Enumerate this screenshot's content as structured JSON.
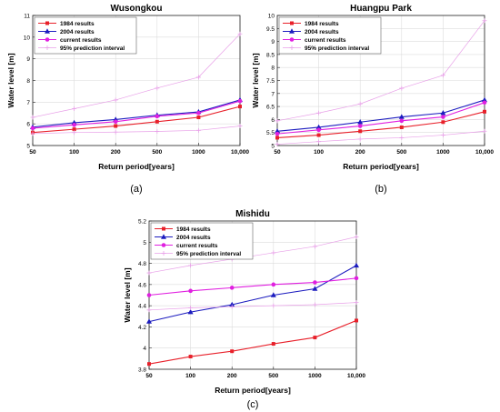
{
  "chart_data": [
    {
      "panel": "(a)",
      "type": "line",
      "title": "Wusongkou",
      "xlabel": "Return period[years]",
      "ylabel": "Water level [m]",
      "categories": [
        "50",
        "100",
        "200",
        "500",
        "1000",
        "10,000"
      ],
      "ylim": [
        5,
        11
      ],
      "yticks": [
        5,
        6,
        7,
        8,
        9,
        10,
        11
      ],
      "legend_position": "top-left",
      "grid": true,
      "series": [
        {
          "name": "1984 results",
          "values": [
            5.6,
            5.75,
            5.9,
            6.1,
            6.3,
            6.8
          ],
          "color": "#e8202a",
          "marker": "square"
        },
        {
          "name": "2004 results",
          "values": [
            5.85,
            6.05,
            6.2,
            6.4,
            6.55,
            7.1
          ],
          "color": "#1c1cbf",
          "marker": "triangle"
        },
        {
          "name": "current results",
          "values": [
            5.8,
            5.95,
            6.1,
            6.35,
            6.5,
            7.05
          ],
          "color": "#e020e0",
          "marker": "circle"
        },
        {
          "name": "95% prediction interval",
          "values": [
            6.3,
            6.7,
            7.1,
            7.65,
            8.15,
            10.15
          ],
          "color": "#e8a0e8",
          "marker": "plus",
          "style": "interval"
        },
        {
          "name": "",
          "values": [
            5.55,
            5.6,
            5.62,
            5.65,
            5.7,
            5.9
          ],
          "color": "#e8a0e8",
          "marker": "plus",
          "style": "interval"
        }
      ]
    },
    {
      "panel": "(b)",
      "type": "line",
      "title": "Huangpu Park",
      "xlabel": "Return period[years]",
      "ylabel": "Water level [m]",
      "categories": [
        "50",
        "100",
        "200",
        "500",
        "1000",
        "10,000"
      ],
      "ylim": [
        5,
        10
      ],
      "yticks": [
        5,
        5.5,
        6,
        6.5,
        7,
        7.5,
        8,
        8.5,
        9,
        9.5,
        10
      ],
      "legend_position": "top-left",
      "grid": true,
      "series": [
        {
          "name": "1984 results",
          "values": [
            5.3,
            5.4,
            5.55,
            5.7,
            5.9,
            6.3
          ],
          "color": "#e8202a",
          "marker": "square"
        },
        {
          "name": "2004 results",
          "values": [
            5.55,
            5.7,
            5.9,
            6.1,
            6.25,
            6.75
          ],
          "color": "#1c1cbf",
          "marker": "triangle"
        },
        {
          "name": "current results",
          "values": [
            5.45,
            5.6,
            5.75,
            5.95,
            6.1,
            6.65
          ],
          "color": "#e020e0",
          "marker": "circle"
        },
        {
          "name": "95% prediction interval",
          "values": [
            5.95,
            6.25,
            6.6,
            7.2,
            7.7,
            9.8
          ],
          "color": "#e8a0e8",
          "marker": "plus",
          "style": "interval"
        },
        {
          "name": "",
          "values": [
            5.05,
            5.15,
            5.25,
            5.3,
            5.4,
            5.55
          ],
          "color": "#e8a0e8",
          "marker": "plus",
          "style": "interval"
        }
      ]
    },
    {
      "panel": "(c)",
      "type": "line",
      "title": "Mishidu",
      "xlabel": "Return period[years]",
      "ylabel": "Water level [m]",
      "categories": [
        "50",
        "100",
        "200",
        "500",
        "1000",
        "10,000"
      ],
      "ylim": [
        3.8,
        5.2
      ],
      "yticks": [
        3.8,
        4,
        4.2,
        4.4,
        4.6,
        4.8,
        5,
        5.2
      ],
      "legend_position": "top-left",
      "grid": true,
      "series": [
        {
          "name": "1984 results",
          "values": [
            3.85,
            3.92,
            3.97,
            4.04,
            4.1,
            4.26
          ],
          "color": "#e8202a",
          "marker": "square"
        },
        {
          "name": "2004 results",
          "values": [
            4.25,
            4.34,
            4.41,
            4.5,
            4.56,
            4.78
          ],
          "color": "#1c1cbf",
          "marker": "triangle"
        },
        {
          "name": "current results",
          "values": [
            4.5,
            4.54,
            4.57,
            4.6,
            4.62,
            4.66
          ],
          "color": "#e020e0",
          "marker": "circle"
        },
        {
          "name": "95% prediction interval",
          "values": [
            4.71,
            4.78,
            4.84,
            4.9,
            4.96,
            5.05
          ],
          "color": "#e8a0e8",
          "marker": "plus",
          "style": "interval"
        },
        {
          "name": "",
          "values": [
            4.36,
            4.38,
            4.39,
            4.4,
            4.41,
            4.43
          ],
          "color": "#e8a0e8",
          "marker": "plus",
          "style": "interval"
        }
      ]
    }
  ]
}
